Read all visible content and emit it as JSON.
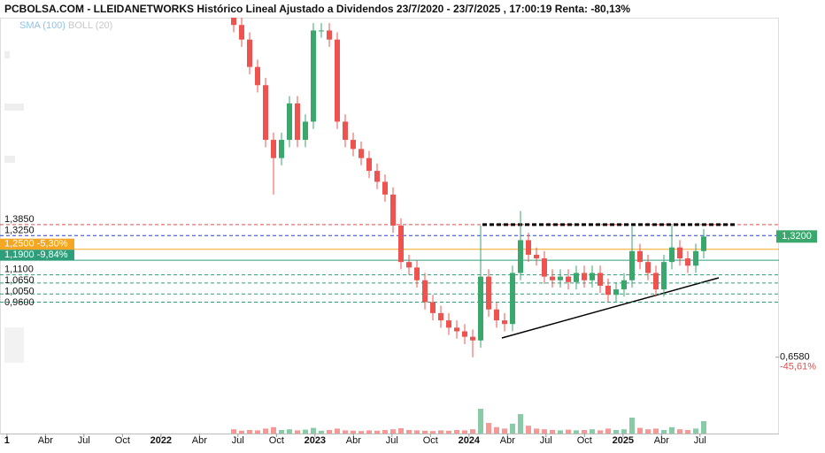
{
  "chart_data": {
    "type": "candlestick",
    "title": "PCBOLSA.COM - LLEIDANETWORKS Histórico Lineal Ajustado a Dividendos 23/7/2020 - 23/7/2025 , 17:00:19 Renta: -80,13%",
    "indicators": [
      "SMA (100)",
      "BOLL (20)"
    ],
    "up_color": "#3aa76d",
    "down_color": "#ef5350",
    "ylim": [
      0.482,
      2.52
    ],
    "xlim": [
      -0.18,
      20.05
    ],
    "xticks": [
      {
        "value": 0,
        "label": "1"
      },
      {
        "value": 1,
        "label": "Abr"
      },
      {
        "value": 2,
        "label": "Jul"
      },
      {
        "value": 3,
        "label": "Oct"
      },
      {
        "value": 4,
        "label": "2022"
      },
      {
        "value": 5,
        "label": "Abr"
      },
      {
        "value": 6,
        "label": "Jul"
      },
      {
        "value": 7,
        "label": "Oct"
      },
      {
        "value": 8,
        "label": "2023"
      },
      {
        "value": 9,
        "label": "Abr"
      },
      {
        "value": 10,
        "label": "Jul"
      },
      {
        "value": 11,
        "label": "Oct"
      },
      {
        "value": 12,
        "label": "2024"
      },
      {
        "value": 13,
        "label": "Abr"
      },
      {
        "value": 14,
        "label": "Jul"
      },
      {
        "value": 15,
        "label": "Oct"
      },
      {
        "value": 16,
        "label": "2025"
      },
      {
        "value": 17,
        "label": "Abr"
      },
      {
        "value": 18,
        "label": "Jul"
      }
    ],
    "open": [
      2.55,
      2.48,
      2.4,
      2.25,
      2.15,
      1.85,
      1.75,
      1.85,
      2.05,
      1.85,
      1.95,
      2.45,
      2.45,
      2.4,
      1.95,
      1.85,
      1.8,
      1.75,
      1.68,
      1.62,
      1.55,
      1.38,
      1.18,
      1.15,
      1.08,
      0.96,
      0.9,
      0.86,
      0.82,
      0.8,
      0.77,
      0.75,
      1.1,
      0.92,
      0.86,
      0.84,
      1.12,
      1.3,
      1.22,
      1.2,
      1.1,
      1.08,
      1.1,
      1.07,
      1.12,
      1.08,
      1.12,
      1.05,
      1.0,
      1.03,
      1.08,
      1.24,
      1.18,
      1.12,
      1.03,
      1.18,
      1.26,
      1.2,
      1.16,
      1.24
    ],
    "high": [
      2.59,
      2.52,
      2.44,
      2.29,
      2.19,
      1.89,
      1.89,
      2.09,
      2.09,
      1.99,
      2.49,
      2.49,
      2.49,
      2.44,
      1.99,
      1.89,
      1.84,
      1.79,
      1.72,
      1.66,
      1.59,
      1.42,
      1.22,
      1.19,
      1.12,
      1.0,
      0.94,
      0.9,
      0.86,
      0.84,
      0.81,
      1.38,
      1.14,
      0.96,
      0.9,
      1.16,
      1.46,
      1.34,
      1.26,
      1.24,
      1.14,
      1.14,
      1.14,
      1.16,
      1.16,
      1.16,
      1.16,
      1.09,
      1.07,
      1.12,
      1.38,
      1.28,
      1.22,
      1.16,
      1.22,
      1.38,
      1.3,
      1.24,
      1.28,
      1.36
    ],
    "low": [
      2.44,
      2.36,
      2.21,
      2.11,
      1.81,
      1.55,
      1.71,
      1.81,
      1.81,
      1.81,
      1.91,
      2.41,
      2.36,
      1.91,
      1.81,
      1.76,
      1.71,
      1.64,
      1.58,
      1.51,
      1.34,
      1.14,
      1.11,
      1.04,
      0.92,
      0.86,
      0.82,
      0.78,
      0.76,
      0.73,
      0.658,
      0.71,
      0.88,
      0.82,
      0.8,
      0.8,
      1.08,
      1.18,
      1.16,
      1.06,
      1.04,
      1.04,
      1.03,
      1.03,
      1.04,
      1.04,
      1.01,
      0.96,
      0.96,
      0.99,
      1.04,
      1.14,
      1.08,
      0.99,
      0.99,
      1.14,
      1.16,
      1.12,
      1.12,
      1.2
    ],
    "close": [
      2.48,
      2.4,
      2.25,
      2.15,
      1.85,
      1.75,
      1.85,
      2.05,
      1.85,
      1.95,
      2.45,
      2.45,
      2.4,
      1.95,
      1.85,
      1.8,
      1.75,
      1.68,
      1.62,
      1.55,
      1.38,
      1.18,
      1.15,
      1.08,
      0.96,
      0.9,
      0.86,
      0.82,
      0.8,
      0.77,
      0.75,
      1.1,
      0.92,
      0.86,
      0.84,
      1.12,
      1.3,
      1.22,
      1.2,
      1.1,
      1.08,
      1.1,
      1.07,
      1.12,
      1.08,
      1.12,
      1.05,
      1.0,
      1.03,
      1.08,
      1.24,
      1.18,
      1.12,
      1.03,
      1.18,
      1.26,
      1.2,
      1.16,
      1.24,
      1.32
    ],
    "volume": [
      12,
      8,
      10,
      9,
      14,
      18,
      10,
      12,
      9,
      11,
      16,
      8,
      10,
      14,
      9,
      8,
      7,
      9,
      8,
      10,
      12,
      15,
      10,
      9,
      8,
      7,
      9,
      8,
      10,
      9,
      12,
      70,
      30,
      18,
      14,
      28,
      55,
      22,
      14,
      12,
      10,
      9,
      11,
      9,
      10,
      12,
      9,
      14,
      10,
      12,
      45,
      16,
      12,
      14,
      10,
      18,
      12,
      10,
      14,
      35
    ],
    "vlim": [
      0,
      100
    ],
    "levels": [
      {
        "value": 1.385,
        "label": "1,3850",
        "color": "#e05050",
        "style": "dashed"
      },
      {
        "value": 1.325,
        "label": "1,3250",
        "color": "#2a3fd6",
        "style": "dashed"
      },
      {
        "value": 1.25,
        "label": "1,2500 -5,30%",
        "color": "#f5a623",
        "style": "solid",
        "boxed": true
      },
      {
        "value": 1.19,
        "label": "1,1900 -9,84%",
        "color": "#2e9e7a",
        "style": "solid",
        "boxed": true
      },
      {
        "value": 1.11,
        "label": "1,1100",
        "color": "#2e9e7a",
        "style": "dashed"
      },
      {
        "value": 1.065,
        "label": "1,0650",
        "color": "#2e9e7a",
        "style": "dashed"
      },
      {
        "value": 1.005,
        "label": "1,0050",
        "color": "#2e9e7a",
        "style": "dashed"
      },
      {
        "value": 0.96,
        "label": "0,9600",
        "color": "#2e9e7a",
        "style": "dashed"
      }
    ],
    "last_price": {
      "value": 1.32,
      "label": "1,3200"
    },
    "min_price": {
      "value": 0.658,
      "label": "0,6580",
      "change": "-45,61%"
    }
  }
}
